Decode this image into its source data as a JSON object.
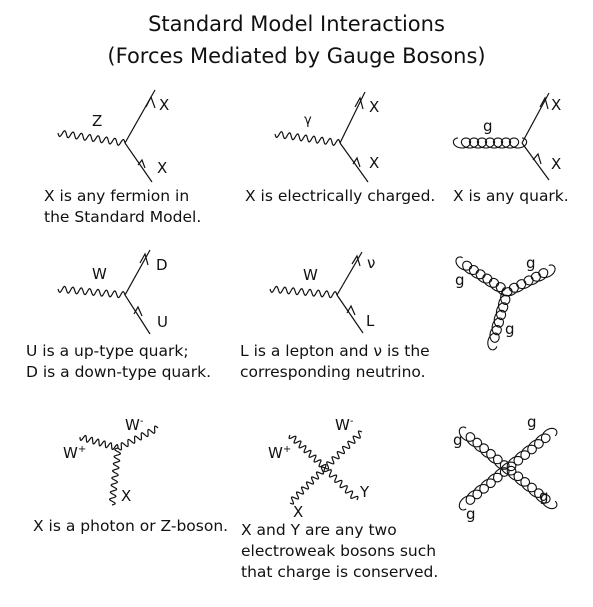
{
  "title": {
    "line1": "Standard Model Interactions",
    "line2": "(Forces Mediated by Gauge Bosons)"
  },
  "diagrams": [
    {
      "boson_label": "Z",
      "out_label": "X",
      "in_label": "X",
      "caption": [
        "X is any fermion in",
        "the Standard Model."
      ]
    },
    {
      "boson_label": "γ",
      "out_label": "X",
      "in_label": "X",
      "caption": [
        "X is electrically charged."
      ]
    },
    {
      "boson_label": "g",
      "out_label": "X",
      "in_label": "X",
      "caption": [
        "X is any quark."
      ]
    },
    {
      "boson_label": "W",
      "out_label": "D",
      "in_label": "U",
      "caption": [
        "U is a up-type quark;",
        "D is a down-type quark."
      ]
    },
    {
      "boson_label": "W",
      "out_label": "ν",
      "in_label": "L",
      "caption": [
        "L is a lepton and ν is the",
        "corresponding neutrino."
      ]
    },
    {
      "labels": [
        "g",
        "g",
        "g"
      ],
      "caption": []
    },
    {
      "labels": {
        "w_plus": "W",
        "w_plus_sup": "+",
        "w_minus": "W",
        "w_minus_sup": "-",
        "x": "X"
      },
      "caption": [
        "X is a photon or Z-boson."
      ]
    },
    {
      "labels": {
        "w_plus": "W",
        "w_plus_sup": "+",
        "w_minus": "W",
        "w_minus_sup": "-",
        "x": "X",
        "y": "Y"
      },
      "caption": [
        "X and Y are any two",
        "electroweak bosons such",
        "that charge is conserved."
      ]
    },
    {
      "labels": [
        "g",
        "g",
        "g",
        "g"
      ],
      "caption": []
    }
  ]
}
